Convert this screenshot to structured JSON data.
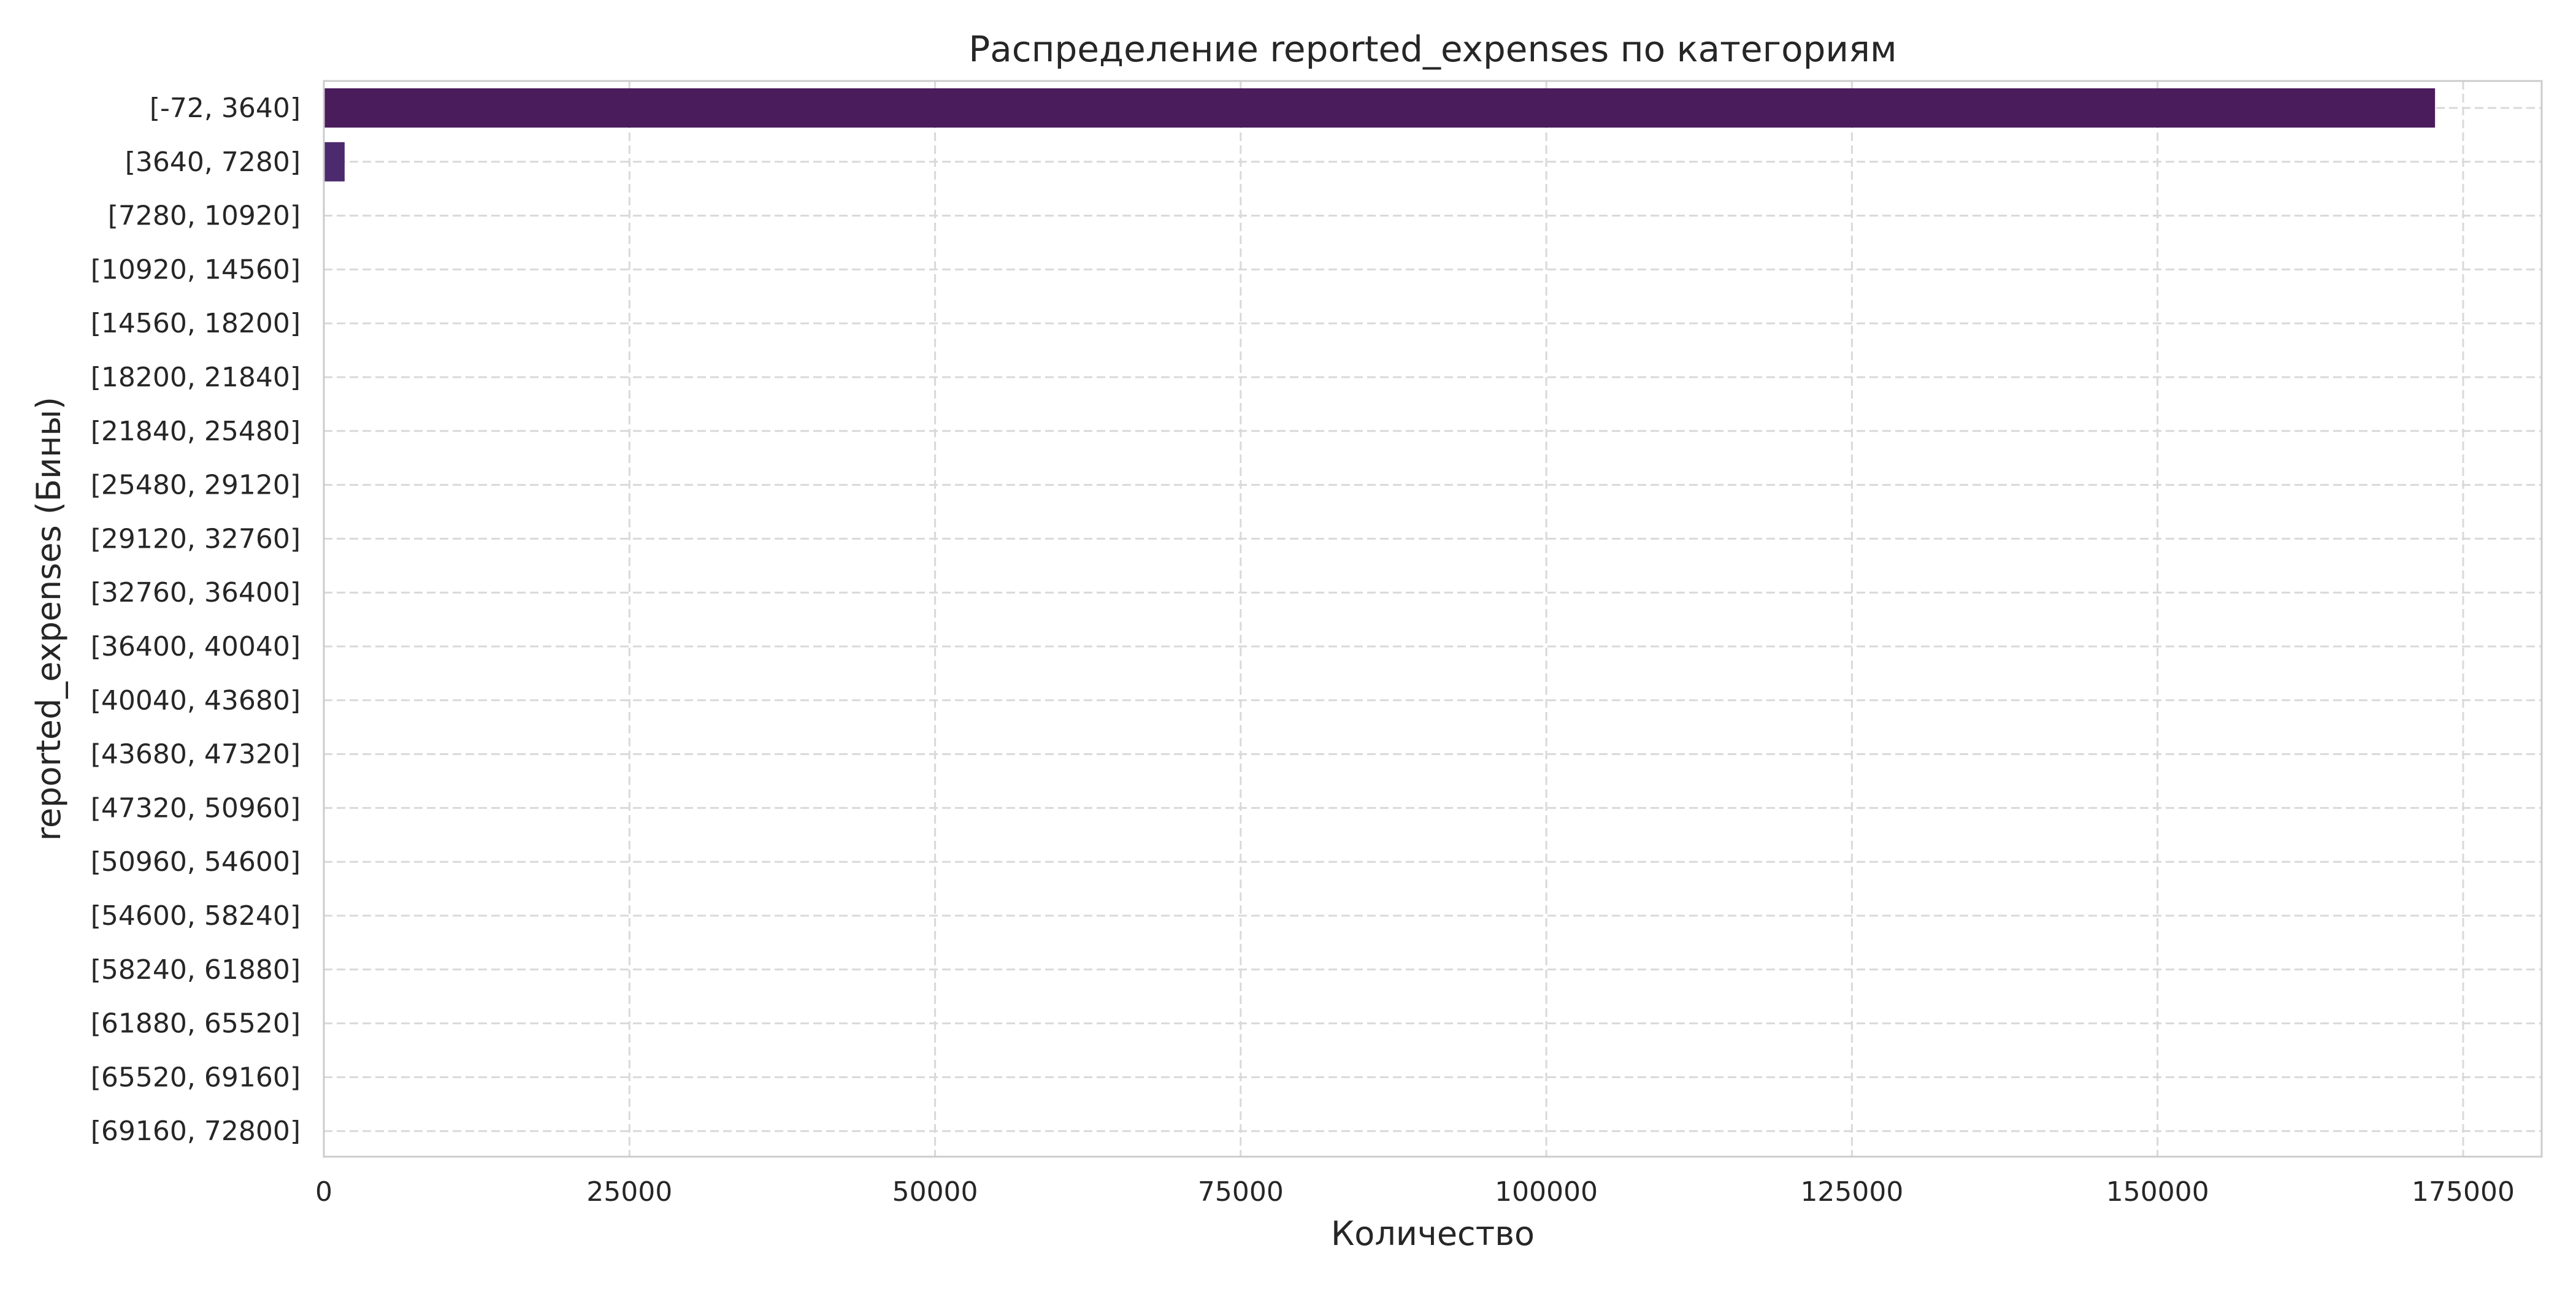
{
  "chart_data": {
    "type": "bar",
    "orientation": "horizontal",
    "title": "Распределение reported_expenses по категориям",
    "xlabel": "Количество",
    "ylabel": "reported_expenses (Бины)",
    "categories": [
      "[-72, 3640]",
      "[3640, 7280]",
      "[7280, 10920]",
      "[10920, 14560]",
      "[14560, 18200]",
      "[18200, 21840]",
      "[21840, 25480]",
      "[25480, 29120]",
      "[29120, 32760]",
      "[32760, 36400]",
      "[36400, 40040]",
      "[40040, 43680]",
      "[43680, 47320]",
      "[47320, 50960]",
      "[50960, 54600]",
      "[54600, 58240]",
      "[58240, 61880]",
      "[61880, 65520]",
      "[65520, 69160]",
      "[69160, 72800]"
    ],
    "values": [
      172700,
      1700,
      0,
      0,
      0,
      0,
      0,
      0,
      0,
      0,
      0,
      0,
      0,
      0,
      0,
      0,
      0,
      0,
      0,
      0
    ],
    "xlim": [
      0,
      181500
    ],
    "xticks": [
      0,
      25000,
      50000,
      75000,
      100000,
      125000,
      150000,
      175000
    ],
    "xtick_labels": [
      "0",
      "25000",
      "50000",
      "75000",
      "100000",
      "125000",
      "150000",
      "175000"
    ],
    "grid": true,
    "bar_colors": [
      "#4a1c5c",
      "#4c2a6e"
    ],
    "grid_color": "#d9d9d9",
    "frame_color": "#cccccc"
  }
}
